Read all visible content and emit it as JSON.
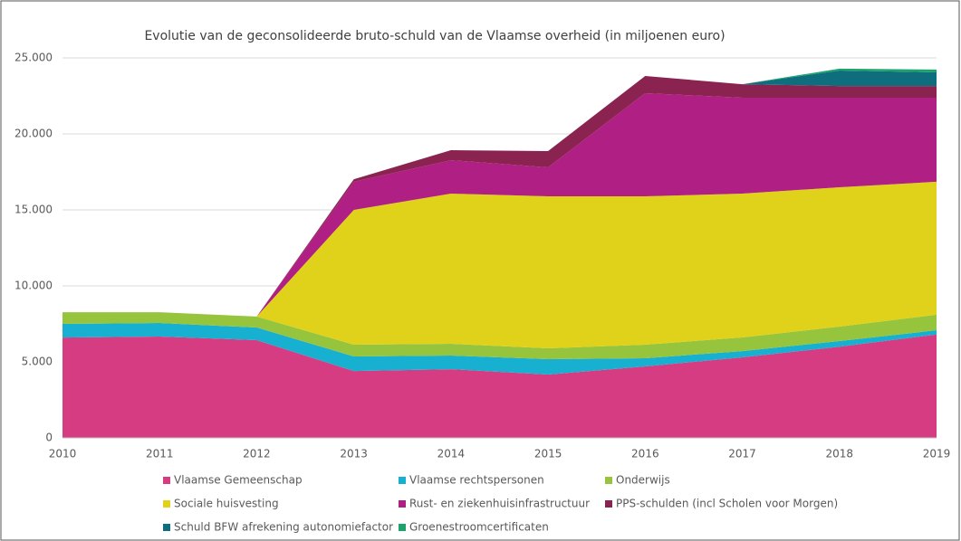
{
  "chart_data": {
    "type": "stacked_area",
    "title": "Evolutie van de geconsolideerde bruto-schuld van de Vlaamse overheid (in miljoenen euro)",
    "categories": [
      "2010",
      "2011",
      "2012",
      "2013",
      "2014",
      "2015",
      "2016",
      "2017",
      "2018",
      "2019"
    ],
    "series": [
      {
        "name": "Vlaamse Gemeenschap",
        "color": "#d63c82",
        "values": [
          6600,
          6670,
          6430,
          4400,
          4520,
          4170,
          4700,
          5300,
          6000,
          6800
        ]
      },
      {
        "name": "Vlaamse rechtspersonen",
        "color": "#17b0d0",
        "values": [
          900,
          890,
          830,
          960,
          900,
          1010,
          540,
          410,
          370,
          280
        ]
      },
      {
        "name": "Onderwijs",
        "color": "#96c43c",
        "values": [
          770,
          710,
          720,
          770,
          770,
          710,
          890,
          900,
          950,
          1020
        ]
      },
      {
        "name": "Sociale huisvesting",
        "color": "#e0d21a",
        "values": [
          0,
          0,
          0,
          8870,
          9880,
          10000,
          9760,
          9460,
          9170,
          8750
        ]
      },
      {
        "name": "Rust- en ziekenhuisinfrastructuur",
        "color": "#b01f84",
        "values": [
          0,
          0,
          0,
          1850,
          2200,
          1910,
          6790,
          6310,
          5890,
          5530
        ]
      },
      {
        "name": "PPS-schulden (incl Scholen voor Morgen)",
        "color": "#8b2350",
        "values": [
          0,
          0,
          0,
          170,
          660,
          1070,
          1130,
          890,
          770,
          770
        ]
      },
      {
        "name": "Schuld BFW afrekening autonomiefactor",
        "color": "#0f6e7e",
        "values": [
          0,
          0,
          0,
          0,
          0,
          0,
          0,
          0,
          1020,
          900
        ]
      },
      {
        "name": "Groenestroomcertificaten",
        "color": "#1aa36a",
        "values": [
          0,
          0,
          0,
          0,
          0,
          0,
          0,
          0,
          120,
          180
        ]
      }
    ],
    "ylim": [
      0,
      25000
    ],
    "yticks": [
      0,
      {
        "value": 5000,
        "label": "5.000"
      },
      {
        "value": 10000,
        "label": "10.000"
      },
      {
        "value": 15000,
        "label": "15.000"
      },
      {
        "value": 20000,
        "label": "20.000"
      },
      {
        "value": 25000,
        "label": "25.000"
      }
    ],
    "grid": true
  }
}
